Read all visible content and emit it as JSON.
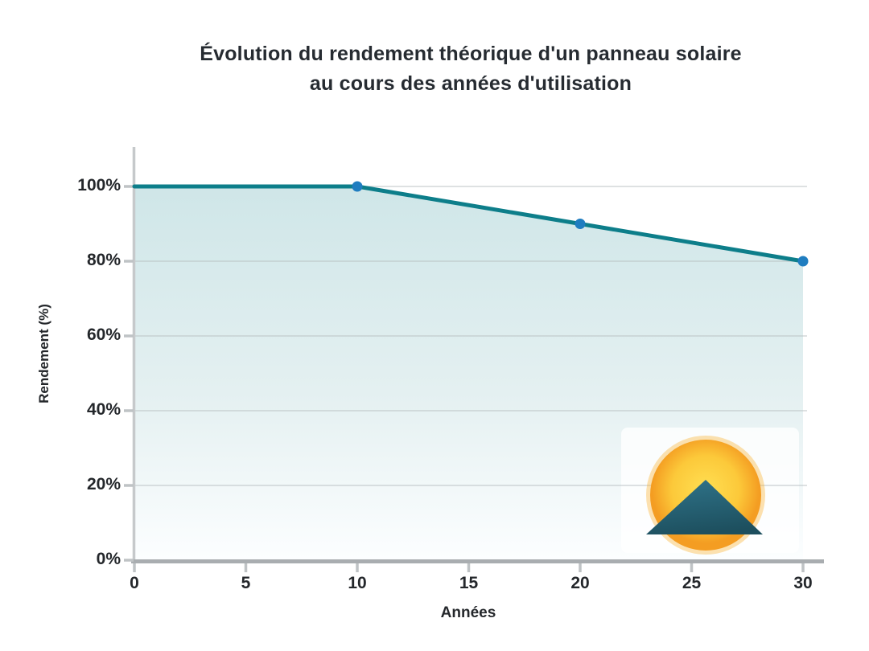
{
  "header": {
    "title_lines": [
      "Évolution du rendement théorique d'un panneau solaire",
      "au cours des années d'utilisation"
    ]
  },
  "chart_data": {
    "type": "area",
    "title": "Évolution du rendement théorique d'un panneau solaire au cours des années d'utilisation",
    "xlabel": "Années",
    "ylabel": "Rendement (%)",
    "x": [
      0,
      10,
      20,
      30
    ],
    "values": [
      100,
      100,
      90,
      80
    ],
    "series_name": "Rendement théorique",
    "xlim": [
      0,
      30
    ],
    "ylim": [
      0,
      100
    ],
    "x_ticks": [
      0,
      5,
      10,
      15,
      20,
      25,
      30
    ],
    "x_tick_labels": [
      "0",
      "5",
      "10",
      "15",
      "20",
      "25",
      "30"
    ],
    "y_ticks": [
      0,
      20,
      40,
      60,
      80,
      100
    ],
    "y_tick_labels": [
      "0%",
      "20%",
      "40%",
      "60%",
      "80%",
      "100%"
    ],
    "grid": true,
    "legend": false,
    "markers_at_x": [
      10,
      20,
      30
    ],
    "colors": {
      "line": "#0d7e8a",
      "marker": "#1f7dc0",
      "area_top": "#cfe6e8",
      "area_mid": "#e4f0f1",
      "area_bottom": "#fcfeff",
      "gridline": "#b8bfc2",
      "y_axis": "#c6c9cb",
      "x_axis": "#a9adb0",
      "tick": "#bfc3c5",
      "text": "#24272b",
      "sun_core": "#ffdf52",
      "sun_mid": "#fcc93a",
      "sun_edge": "#f49d22",
      "sun_glow": "#f9b02e",
      "mountain_top": "#2f7389",
      "mountain_bottom": "#1d4f5e",
      "logo_box": "rgba(255,255,255,0.78)"
    }
  },
  "logo": {
    "name": "sun-mountain-logo"
  }
}
